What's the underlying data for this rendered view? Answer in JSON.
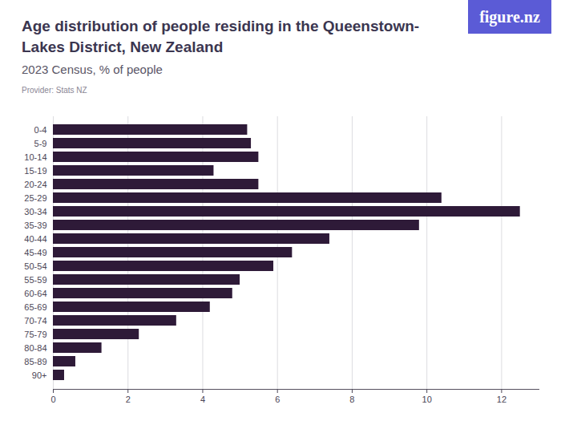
{
  "chart_data": {
    "type": "bar",
    "title": "Age distribution of people residing in the Queenstown-Lakes District, New Zealand",
    "subtitle": "2023 Census, % of people",
    "source": "Provider: Stats NZ",
    "logo": "figure.nz",
    "orientation": "horizontal",
    "categories": [
      "0-4",
      "5-9",
      "10-14",
      "15-19",
      "20-24",
      "25-29",
      "30-34",
      "35-39",
      "40-44",
      "45-49",
      "50-54",
      "55-59",
      "60-64",
      "65-69",
      "70-74",
      "75-79",
      "80-84",
      "85-89",
      "90+"
    ],
    "values": [
      5.2,
      5.3,
      5.5,
      4.3,
      5.5,
      10.4,
      12.5,
      9.8,
      7.4,
      6.4,
      5.9,
      5.0,
      4.8,
      4.2,
      3.3,
      2.3,
      1.3,
      0.6,
      0.3
    ],
    "color": "#2e1a38",
    "xlim": [
      0,
      13
    ],
    "xticks": [
      0,
      2,
      4,
      6,
      8,
      10,
      12
    ],
    "grid": true
  }
}
